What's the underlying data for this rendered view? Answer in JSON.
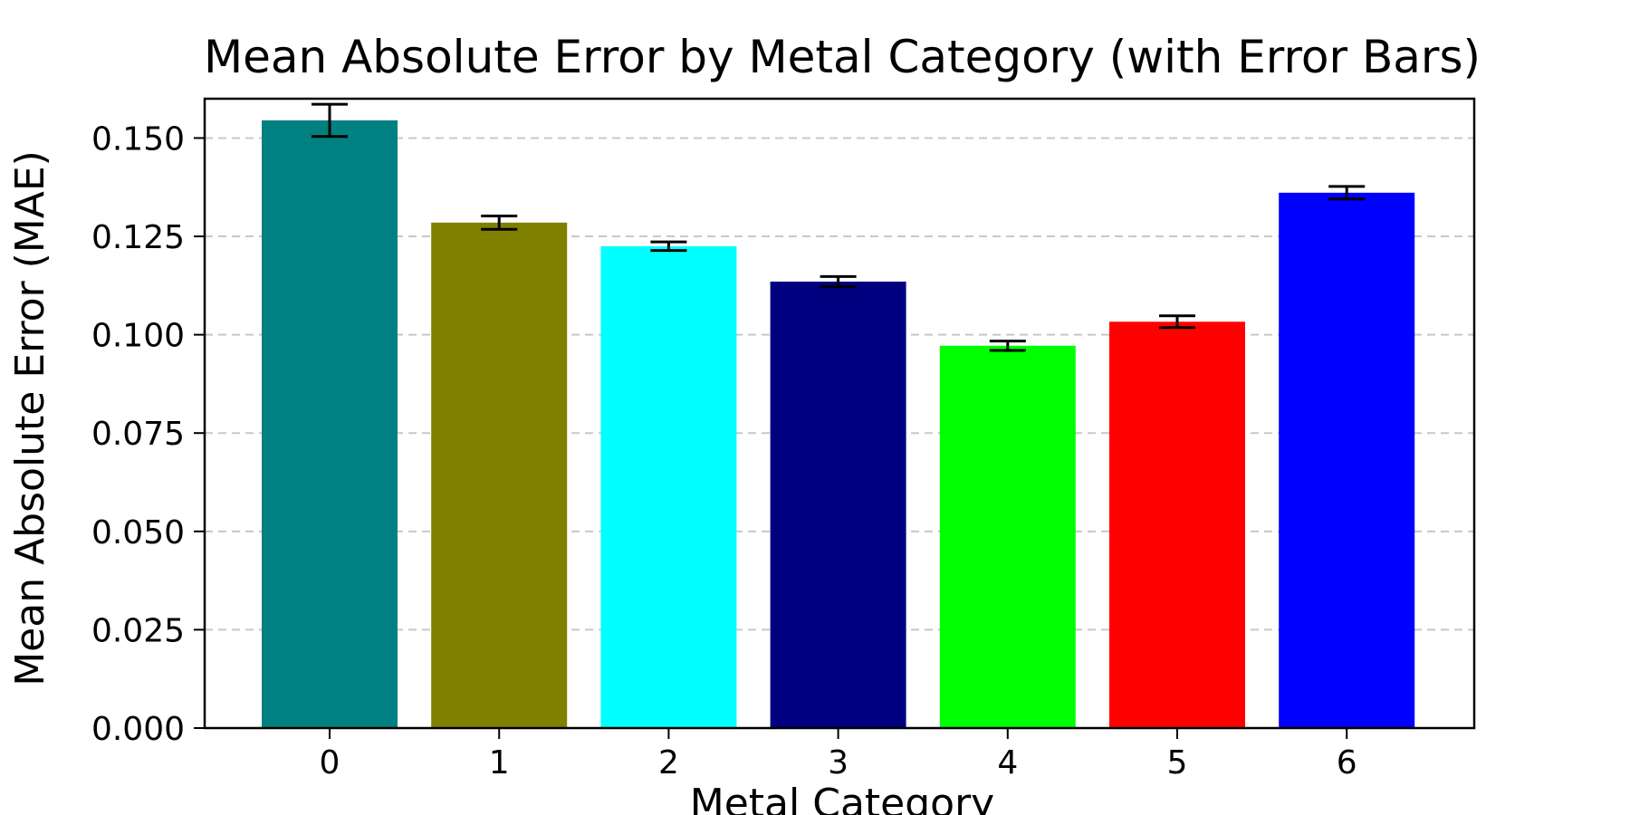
{
  "chart_data": {
    "type": "bar",
    "title": "Mean Absolute Error by Metal Category (with Error Bars)",
    "xlabel": "Metal Category",
    "ylabel": "Mean Absolute Error (MAE)",
    "categories": [
      "0",
      "1",
      "2",
      "3",
      "4",
      "5",
      "6"
    ],
    "values": [
      0.1545,
      0.1285,
      0.1225,
      0.1135,
      0.0972,
      0.1033,
      0.1361
    ],
    "errors": [
      0.0041,
      0.0017,
      0.0011,
      0.0013,
      0.0012,
      0.0015,
      0.0016
    ],
    "colors": [
      "#008080",
      "#808000",
      "#00ffff",
      "#000080",
      "#00ff00",
      "#ff0000",
      "#0000ff"
    ],
    "ylim": [
      0,
      0.16
    ],
    "yticks": [
      0.0,
      0.025,
      0.05,
      0.075,
      0.1,
      0.125,
      0.15
    ],
    "ytick_labels": [
      "0.000",
      "0.025",
      "0.050",
      "0.075",
      "0.100",
      "0.125",
      "0.150"
    ],
    "grid": "y-dashed",
    "legend": "none"
  }
}
